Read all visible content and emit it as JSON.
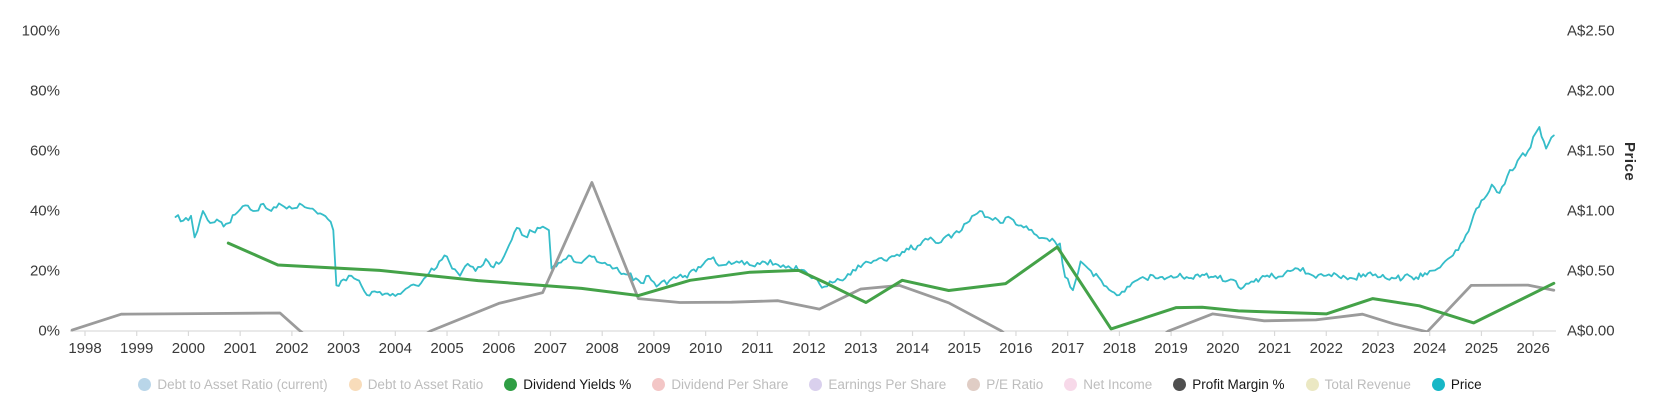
{
  "chart_data": {
    "type": "line",
    "title": "",
    "x_axis": {
      "range": [
        1997.7,
        2026.55
      ],
      "tick_labels": [
        "1998",
        "1999",
        "2000",
        "2001",
        "2002",
        "2003",
        "2004",
        "2005",
        "2006",
        "2007",
        "2008",
        "2009",
        "2010",
        "2011",
        "2012",
        "2013",
        "2014",
        "2015",
        "2016",
        "2017",
        "2018",
        "2019",
        "2020",
        "2021",
        "2022",
        "2023",
        "2024",
        "2025",
        "2026"
      ]
    },
    "y_axis_left": {
      "label": "",
      "unit": "%",
      "range": [
        0,
        100
      ],
      "tick_labels": [
        "100%",
        "80%",
        "60%",
        "40%",
        "20%",
        "0%"
      ]
    },
    "y_axis_right": {
      "label": "Price",
      "unit": "A$",
      "range": [
        0,
        2.5
      ],
      "tick_labels": [
        "A$2.50",
        "A$2.00",
        "A$1.50",
        "A$1.00",
        "A$0.50",
        "A$0.00"
      ]
    },
    "grid": false,
    "legend_position": "bottom",
    "series": [
      {
        "name": "Dividend Yields %",
        "axis": "left",
        "unit": "%",
        "color": "#44a248",
        "width": 3,
        "noisy": false,
        "points": [
          [
            2000.77,
            29.3
          ],
          [
            2001.73,
            22.0
          ],
          [
            2003.7,
            20.2
          ],
          [
            2005.6,
            16.8
          ],
          [
            2007.6,
            14.2
          ],
          [
            2008.7,
            11.8
          ],
          [
            2009.7,
            16.9
          ],
          [
            2010.86,
            19.6
          ],
          [
            2011.8,
            20.2
          ],
          [
            2012.3,
            16.2
          ],
          [
            2012.75,
            12.4
          ],
          [
            2013.1,
            9.5
          ],
          [
            2013.8,
            16.9
          ],
          [
            2014.7,
            13.5
          ],
          [
            2015.8,
            15.8
          ],
          [
            2016.8,
            28.0
          ],
          [
            2017.84,
            0.7
          ],
          [
            2019.1,
            7.8
          ],
          [
            2019.6,
            7.9
          ],
          [
            2020.3,
            6.7
          ],
          [
            2022.0,
            5.7
          ],
          [
            2022.9,
            10.8
          ],
          [
            2023.8,
            8.4
          ],
          [
            2024.85,
            2.7
          ],
          [
            2026.4,
            15.9
          ]
        ]
      },
      {
        "name": "Profit Margin %",
        "axis": "left",
        "unit": "%",
        "color": "#9b9b9b",
        "width": 2.8,
        "noisy": false,
        "points": [
          [
            1997.75,
            0.3
          ],
          [
            1998.7,
            5.6
          ],
          [
            2000.2,
            5.8
          ],
          [
            2001.77,
            6.0
          ],
          [
            2002.16,
            0
          ],
          [
            2002.3,
            -2
          ],
          [
            2004.5,
            -2
          ],
          [
            2004.68,
            0
          ],
          [
            2006.0,
            9.2
          ],
          [
            2006.85,
            12.8
          ],
          [
            2007.8,
            49.5
          ],
          [
            2008.7,
            10.8
          ],
          [
            2009.5,
            9.5
          ],
          [
            2010.5,
            9.6
          ],
          [
            2011.4,
            10.1
          ],
          [
            2012.2,
            7.3
          ],
          [
            2013.0,
            14.0
          ],
          [
            2013.75,
            15.2
          ],
          [
            2014.7,
            9.4
          ],
          [
            2015.72,
            0
          ],
          [
            2015.85,
            -2
          ],
          [
            2018.8,
            -2
          ],
          [
            2018.95,
            0
          ],
          [
            2019.8,
            5.7
          ],
          [
            2020.8,
            3.4
          ],
          [
            2021.8,
            3.7
          ],
          [
            2022.7,
            5.6
          ],
          [
            2023.3,
            2.4
          ],
          [
            2023.95,
            -0.3
          ],
          [
            2024.8,
            15.2
          ],
          [
            2025.9,
            15.3
          ],
          [
            2026.4,
            13.6
          ]
        ]
      },
      {
        "name": "Price",
        "axis": "right",
        "unit": "A$",
        "color": "#35bdc9",
        "width": 1.8,
        "noisy": true,
        "points": [
          [
            1999.75,
            0.95
          ],
          [
            1999.9,
            0.92
          ],
          [
            2000.05,
            0.96
          ],
          [
            2000.12,
            0.78
          ],
          [
            2000.28,
            1.0
          ],
          [
            2000.42,
            0.9
          ],
          [
            2000.55,
            0.93
          ],
          [
            2000.68,
            0.87
          ],
          [
            2000.9,
            0.97
          ],
          [
            2001.05,
            1.04
          ],
          [
            2001.25,
            1.0
          ],
          [
            2001.45,
            1.06
          ],
          [
            2001.6,
            1.0
          ],
          [
            2001.8,
            1.05
          ],
          [
            2002.0,
            1.02
          ],
          [
            2002.2,
            1.05
          ],
          [
            2002.4,
            1.02
          ],
          [
            2002.55,
            0.98
          ],
          [
            2002.7,
            0.93
          ],
          [
            2002.8,
            0.84
          ],
          [
            2002.86,
            0.38
          ],
          [
            2003.0,
            0.43
          ],
          [
            2003.15,
            0.46
          ],
          [
            2003.3,
            0.42
          ],
          [
            2003.45,
            0.3
          ],
          [
            2003.6,
            0.33
          ],
          [
            2003.75,
            0.3
          ],
          [
            2003.95,
            0.31
          ],
          [
            2004.15,
            0.33
          ],
          [
            2004.4,
            0.38
          ],
          [
            2004.65,
            0.48
          ],
          [
            2004.85,
            0.58
          ],
          [
            2004.95,
            0.63
          ],
          [
            2005.1,
            0.52
          ],
          [
            2005.25,
            0.46
          ],
          [
            2005.4,
            0.56
          ],
          [
            2005.55,
            0.5
          ],
          [
            2005.75,
            0.6
          ],
          [
            2005.9,
            0.53
          ],
          [
            2006.1,
            0.62
          ],
          [
            2006.35,
            0.86
          ],
          [
            2006.5,
            0.79
          ],
          [
            2006.65,
            0.83
          ],
          [
            2006.85,
            0.87
          ],
          [
            2006.97,
            0.84
          ],
          [
            2007.02,
            0.52
          ],
          [
            2007.2,
            0.57
          ],
          [
            2007.35,
            0.63
          ],
          [
            2007.55,
            0.57
          ],
          [
            2007.75,
            0.63
          ],
          [
            2007.95,
            0.57
          ],
          [
            2008.2,
            0.52
          ],
          [
            2008.5,
            0.47
          ],
          [
            2008.75,
            0.4
          ],
          [
            2008.9,
            0.46
          ],
          [
            2009.05,
            0.37
          ],
          [
            2009.3,
            0.42
          ],
          [
            2009.6,
            0.46
          ],
          [
            2009.9,
            0.53
          ],
          [
            2010.1,
            0.6
          ],
          [
            2010.35,
            0.55
          ],
          [
            2010.6,
            0.58
          ],
          [
            2010.85,
            0.55
          ],
          [
            2011.1,
            0.58
          ],
          [
            2011.35,
            0.56
          ],
          [
            2011.6,
            0.54
          ],
          [
            2011.85,
            0.51
          ],
          [
            2012.05,
            0.44
          ],
          [
            2012.3,
            0.37
          ],
          [
            2012.5,
            0.41
          ],
          [
            2012.7,
            0.44
          ],
          [
            2012.85,
            0.51
          ],
          [
            2013.05,
            0.56
          ],
          [
            2013.3,
            0.59
          ],
          [
            2013.55,
            0.61
          ],
          [
            2013.8,
            0.66
          ],
          [
            2014.1,
            0.71
          ],
          [
            2014.35,
            0.78
          ],
          [
            2014.55,
            0.74
          ],
          [
            2014.8,
            0.81
          ],
          [
            2015.05,
            0.9
          ],
          [
            2015.3,
            1.0
          ],
          [
            2015.5,
            0.94
          ],
          [
            2015.7,
            0.9
          ],
          [
            2015.9,
            0.94
          ],
          [
            2016.1,
            0.88
          ],
          [
            2016.35,
            0.81
          ],
          [
            2016.6,
            0.77
          ],
          [
            2016.85,
            0.73
          ],
          [
            2016.95,
            0.45
          ],
          [
            2017.1,
            0.34
          ],
          [
            2017.25,
            0.58
          ],
          [
            2017.45,
            0.5
          ],
          [
            2017.65,
            0.42
          ],
          [
            2017.85,
            0.33
          ],
          [
            2018.0,
            0.3
          ],
          [
            2018.2,
            0.37
          ],
          [
            2018.45,
            0.45
          ],
          [
            2018.7,
            0.44
          ],
          [
            2019.0,
            0.46
          ],
          [
            2019.3,
            0.45
          ],
          [
            2019.6,
            0.47
          ],
          [
            2019.9,
            0.44
          ],
          [
            2020.15,
            0.43
          ],
          [
            2020.35,
            0.35
          ],
          [
            2020.6,
            0.41
          ],
          [
            2020.9,
            0.45
          ],
          [
            2021.2,
            0.48
          ],
          [
            2021.45,
            0.52
          ],
          [
            2021.7,
            0.47
          ],
          [
            2021.95,
            0.46
          ],
          [
            2022.2,
            0.47
          ],
          [
            2022.5,
            0.44
          ],
          [
            2022.8,
            0.48
          ],
          [
            2023.05,
            0.45
          ],
          [
            2023.35,
            0.44
          ],
          [
            2023.65,
            0.45
          ],
          [
            2023.95,
            0.47
          ],
          [
            2024.2,
            0.53
          ],
          [
            2024.45,
            0.63
          ],
          [
            2024.7,
            0.8
          ],
          [
            2024.9,
            1.02
          ],
          [
            2025.05,
            1.1
          ],
          [
            2025.2,
            1.22
          ],
          [
            2025.35,
            1.15
          ],
          [
            2025.5,
            1.29
          ],
          [
            2025.7,
            1.42
          ],
          [
            2025.9,
            1.5
          ],
          [
            2026.05,
            1.65
          ],
          [
            2026.12,
            1.7
          ],
          [
            2026.25,
            1.52
          ],
          [
            2026.4,
            1.63
          ]
        ]
      }
    ]
  },
  "legend": {
    "items": [
      {
        "label": "Debt to Asset Ratio (current)",
        "color": "#b9d6e9",
        "active": false
      },
      {
        "label": "Debt to Asset Ratio",
        "color": "#f8dcba",
        "active": false
      },
      {
        "label": "Dividend Yields %",
        "color": "#2f9e44",
        "active": true
      },
      {
        "label": "Dividend Per Share",
        "color": "#f3c6c6",
        "active": false
      },
      {
        "label": "Earnings Per Share",
        "color": "#d9d0ed",
        "active": false
      },
      {
        "label": "P/E Ratio",
        "color": "#e0cdc5",
        "active": false
      },
      {
        "label": "Net Income",
        "color": "#f7d9e9",
        "active": false
      },
      {
        "label": "Profit Margin %",
        "color": "#4f4f4f",
        "active": true
      },
      {
        "label": "Total Revenue",
        "color": "#ebe8c3",
        "active": false
      },
      {
        "label": "Price",
        "color": "#17b7c6",
        "active": true
      }
    ]
  },
  "style": {
    "axis_line_color": "#e2e2e2",
    "tick_color": "#d9d9d9",
    "active_label_color": "#161616",
    "inactive_label_color": "#bdbdbd"
  }
}
